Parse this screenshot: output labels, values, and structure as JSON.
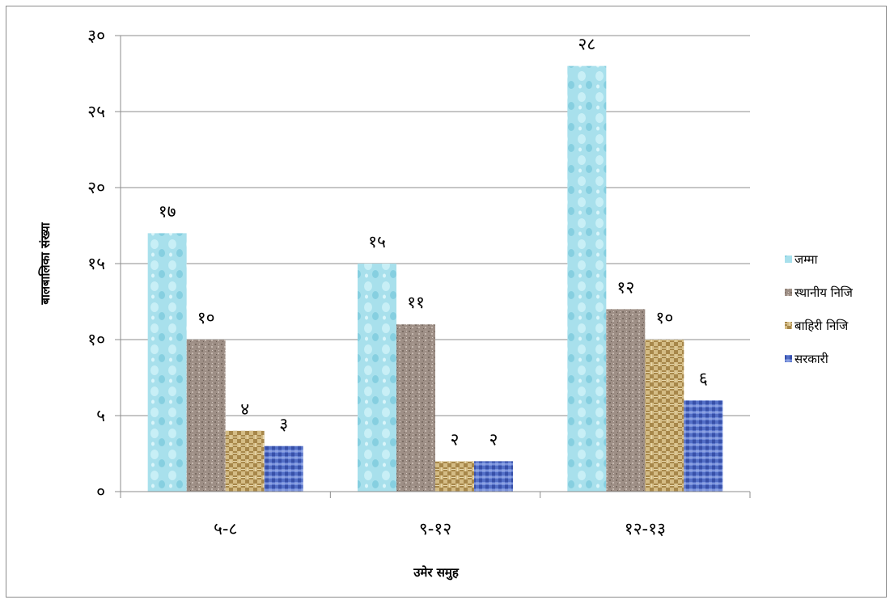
{
  "chart_data": {
    "type": "bar",
    "categories": [
      "५-८",
      "९-१२",
      "१२-१३"
    ],
    "series": [
      {
        "name": "जम्मा",
        "values": [
          17,
          15,
          28
        ],
        "labels": [
          "१७",
          "१५",
          "२८"
        ],
        "color": "#a8e0ec"
      },
      {
        "name": "स्थानीय निजि",
        "values": [
          10,
          11,
          12
        ],
        "labels": [
          "१०",
          "११",
          "१२"
        ],
        "color": "#9e8f86"
      },
      {
        "name": "बाहिरी निजि",
        "values": [
          4,
          2,
          10
        ],
        "labels": [
          "४",
          "२",
          "१०"
        ],
        "color": "#c9ad6e"
      },
      {
        "name": "सरकारी",
        "values": [
          3,
          2,
          6
        ],
        "labels": [
          "३",
          "२",
          "६"
        ],
        "color": "#5470c8"
      }
    ],
    "ylim": [
      0,
      30
    ],
    "yticks": [
      0,
      5,
      10,
      15,
      20,
      25,
      30
    ],
    "ytick_labels": [
      "०",
      "५",
      "१०",
      "१५",
      "२०",
      "२५",
      "३०"
    ],
    "xlabel": "उमेर समुह",
    "ylabel": "बालबालिका संख्या",
    "grid": true,
    "legend_position": "right"
  }
}
